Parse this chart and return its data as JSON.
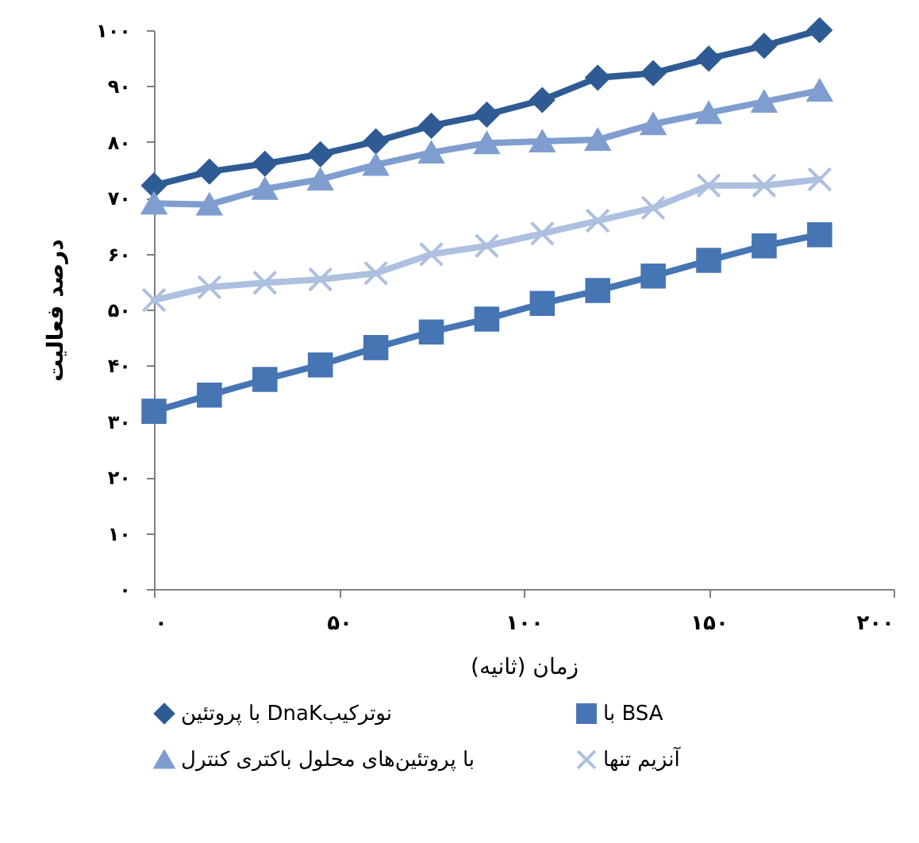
{
  "chart_data": {
    "type": "line",
    "xlabel": "زمان (ثانیه)",
    "ylabel": "درصد فعالیت",
    "x": [
      0,
      15,
      30,
      45,
      60,
      75,
      90,
      105,
      120,
      135,
      150,
      165,
      180
    ],
    "xlim": [
      0,
      200
    ],
    "xticks": [
      {
        "value": 0,
        "label": "۰"
      },
      {
        "value": 50,
        "label": "۵۰"
      },
      {
        "value": 100,
        "label": "۱۰۰"
      },
      {
        "value": 150,
        "label": "۱۵۰"
      },
      {
        "value": 200,
        "label": "۲۰۰"
      }
    ],
    "ylim": [
      0,
      100
    ],
    "yticks": [
      {
        "value": 0,
        "label": "۰"
      },
      {
        "value": 10,
        "label": "۱۰"
      },
      {
        "value": 20,
        "label": "۲۰"
      },
      {
        "value": 30,
        "label": "۳۰"
      },
      {
        "value": 40,
        "label": "۴۰"
      },
      {
        "value": 50,
        "label": "۵۰"
      },
      {
        "value": 60,
        "label": "۶۰"
      },
      {
        "value": 70,
        "label": "۷۰"
      },
      {
        "value": 80,
        "label": "۸۰"
      },
      {
        "value": 90,
        "label": "۹۰"
      },
      {
        "value": 100,
        "label": "۱۰۰"
      }
    ],
    "grid": false,
    "legend": "bottom",
    "line_style": "solid",
    "series": [
      {
        "name": "با پروتئین DnaKنوترکیب",
        "color": "#2f5b94",
        "marker": "diamond",
        "values": [
          72.2,
          74.7,
          76.1,
          77.8,
          80.1,
          82.9,
          84.9,
          87.5,
          91.5,
          92.3,
          94.9,
          97.2,
          100
        ]
      },
      {
        "name": "با BSA",
        "color": "#4675b4",
        "marker": "square",
        "values": [
          31.8,
          34.7,
          37.5,
          40.1,
          43.2,
          46,
          48.3,
          51.1,
          53.4,
          56,
          58.8,
          61.4,
          63.4
        ]
      },
      {
        "name": "با پروتئین‌های محلول باکتری کنترل",
        "color": "#7f9dcf",
        "marker": "triangle",
        "values": [
          69,
          68.8,
          71.6,
          73.3,
          75.9,
          78.1,
          79.8,
          80.1,
          80.4,
          83.2,
          85.2,
          87.2,
          89.2
        ]
      },
      {
        "name": "آنزیم تنها",
        "color": "#adc0e0",
        "marker": "cross",
        "values": [
          51.7,
          54,
          54.8,
          55.4,
          56.5,
          59.9,
          61.4,
          63.6,
          65.9,
          68.2,
          72.2,
          72.2,
          73.3
        ]
      }
    ]
  }
}
